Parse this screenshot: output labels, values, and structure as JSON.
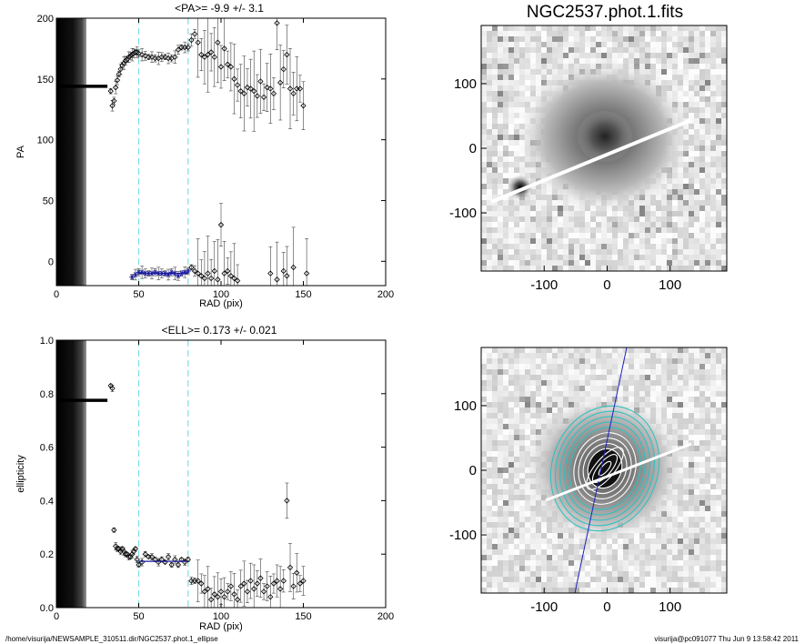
{
  "footer": {
    "left": "/home/visurija/NEWSAMPLE_310511.dir/NGC2537.phot.1_ellipse",
    "right": "visurija@pc091077  Thu Jun  9 13:58:42 2011"
  },
  "colors": {
    "fit_points": "#1a1aa0",
    "guide_lines": "#7fe0e0",
    "major_axis": "#2020c0",
    "contour_cyan": "#30c0c0"
  },
  "chart_data": [
    {
      "type": "scatter",
      "title": "<PA>=  -9.9 +/-   3.1",
      "xlabel": "RAD (pix)",
      "ylabel": "PA",
      "xlim": [
        0,
        200
      ],
      "ylim": [
        -20,
        200
      ],
      "xticks": [
        "0",
        "50",
        "100",
        "150",
        "200"
      ],
      "yticks": [
        "0",
        "50",
        "100",
        "150",
        "200"
      ],
      "guide_lines_x": [
        50,
        80
      ],
      "excluded_region_x": [
        0,
        32
      ],
      "series": [
        {
          "marker": "diamond",
          "x": [
            33,
            34,
            35,
            36,
            37,
            38,
            39,
            40,
            41,
            42,
            43,
            44,
            45,
            46,
            47,
            48,
            49,
            50,
            52,
            54,
            56,
            58,
            60,
            62,
            64,
            66,
            68,
            70,
            72,
            74,
            76,
            78,
            80,
            82,
            84,
            86,
            88,
            90,
            92,
            94,
            96,
            98,
            100,
            102,
            104,
            106,
            108,
            110,
            112,
            114,
            116,
            118,
            120,
            122,
            124,
            126,
            128,
            130,
            132,
            134,
            136,
            138,
            140,
            142,
            144,
            146,
            148,
            150,
            152
          ],
          "y": [
            140,
            128,
            132,
            143,
            149,
            154,
            158,
            161,
            163,
            165,
            166,
            168,
            169,
            170,
            171,
            172,
            172,
            171,
            170,
            169,
            168,
            168,
            167,
            167,
            168,
            168,
            167,
            167,
            168,
            174,
            176,
            176,
            176,
            182,
            187,
            180,
            170,
            168,
            170,
            172,
            168,
            180,
            160,
            175,
            162,
            160,
            150,
            145,
            140,
            138,
            143,
            142,
            140,
            136,
            148,
            135,
            143,
            142,
            138,
            196,
            147,
            158,
            170,
            142,
            138,
            142,
            142,
            128,
            -10
          ]
        },
        {
          "marker": "asterisk",
          "x": [
            46,
            48,
            50,
            52,
            54,
            56,
            58,
            60,
            62,
            64,
            66,
            68,
            70,
            72,
            74,
            76,
            78,
            80
          ],
          "y": [
            -13,
            -11,
            -9,
            -9,
            -10,
            -10,
            -10,
            -9,
            -10,
            -10,
            -10,
            -11,
            -9,
            -10,
            -12,
            -10,
            -9,
            -8
          ]
        },
        {
          "marker": "diamond",
          "x": [
            82,
            84,
            86,
            88,
            90,
            92,
            94,
            96,
            98,
            100,
            102,
            104,
            106,
            108,
            110,
            130,
            134,
            138,
            140,
            144
          ],
          "y": [
            -5,
            -8,
            -10,
            -12,
            -14,
            -10,
            -14,
            -8,
            -15,
            30,
            -10,
            -8,
            -12,
            -14,
            -16,
            -10,
            -15,
            -8,
            -12,
            -5
          ]
        }
      ]
    },
    {
      "type": "image",
      "title": "NGC2537.phot.1.fits",
      "xticks": [
        "-100",
        "0",
        "100"
      ],
      "yticks": [
        "100",
        "0",
        "-100"
      ],
      "xlim": [
        -200,
        190
      ],
      "ylim": [
        -190,
        190
      ]
    },
    {
      "type": "scatter",
      "title": "<ELL>= 0.173 +/-  0.021",
      "xlabel": "RAD (pix)",
      "ylabel": "ellipticity",
      "xlim": [
        0,
        200
      ],
      "ylim": [
        0,
        1.0
      ],
      "xticks": [
        "0",
        "50",
        "100",
        "150",
        "200"
      ],
      "yticks": [
        "0.0",
        "0.2",
        "0.4",
        "0.6",
        "0.8",
        "1.0"
      ],
      "guide_lines_x": [
        50,
        80
      ],
      "excluded_region_x": [
        0,
        32
      ],
      "series": [
        {
          "marker": "diamond",
          "x": [
            33,
            34,
            35,
            36,
            37,
            38,
            39,
            40,
            41,
            42,
            43,
            44,
            45,
            46,
            47,
            48,
            49,
            50,
            52,
            54,
            56,
            58,
            60,
            62,
            64,
            66,
            68,
            70,
            72,
            74,
            76,
            78,
            80,
            82,
            84,
            86,
            88,
            90,
            92,
            94,
            96,
            98,
            100,
            102,
            104,
            106,
            108,
            110,
            112,
            114,
            116,
            118,
            120,
            122,
            124,
            126,
            128,
            130,
            132,
            134,
            136,
            138,
            140,
            142,
            144,
            146,
            148,
            150
          ],
          "y": [
            0.83,
            0.82,
            0.29,
            0.23,
            0.22,
            0.22,
            0.21,
            0.22,
            0.21,
            0.2,
            0.2,
            0.19,
            0.19,
            0.2,
            0.21,
            0.22,
            0.18,
            0.16,
            0.17,
            0.2,
            0.19,
            0.19,
            0.18,
            0.17,
            0.18,
            0.17,
            0.19,
            0.16,
            0.18,
            0.16,
            0.18,
            0.17,
            0.18,
            0.1,
            0.1,
            0.1,
            0.09,
            0.06,
            0.07,
            0.03,
            0.05,
            0.04,
            0.06,
            0.04,
            0.06,
            0.08,
            0.05,
            0.03,
            0.08,
            0.09,
            0.06,
            0.1,
            0.07,
            0.09,
            0.11,
            0.06,
            0.08,
            0.04,
            0.09,
            0.1,
            0.07,
            0.1,
            0.4,
            0.15,
            0.08,
            0.13,
            0.09,
            0.1
          ]
        }
      ],
      "fit_line": {
        "x": [
          50,
          80
        ],
        "y": [
          0.173,
          0.173
        ]
      }
    },
    {
      "type": "image",
      "title": "",
      "xticks": [
        "-100",
        "0",
        "100"
      ],
      "yticks": [
        "100",
        "0",
        "-100"
      ],
      "xlim": [
        -200,
        190
      ],
      "ylim": [
        -190,
        190
      ]
    }
  ]
}
